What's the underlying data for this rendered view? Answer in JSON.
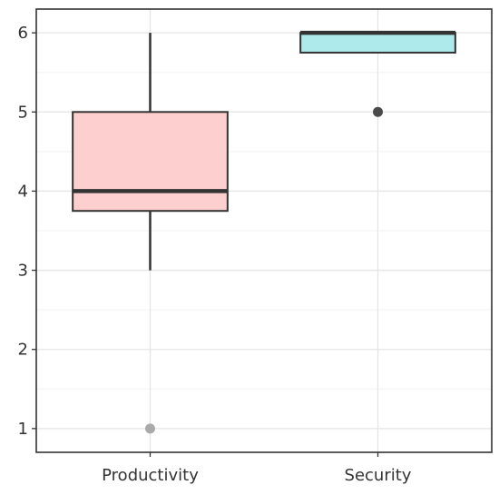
{
  "chart_data": {
    "type": "boxplot",
    "title": "",
    "xlabel": "",
    "ylabel": "",
    "categories": [
      "Productivity",
      "Security"
    ],
    "ylim": [
      0.7,
      6.3
    ],
    "yticks": [
      1,
      2,
      3,
      4,
      5,
      6
    ],
    "grid": true,
    "legend": "none",
    "boxes": [
      {
        "category": "Productivity",
        "min": 3,
        "q1": 3.75,
        "median": 4,
        "q3": 5,
        "max": 6,
        "outliers": [
          1
        ],
        "fill": "#fdd0cf",
        "outlier_color": "#aaaaaa"
      },
      {
        "category": "Security",
        "min": 5.75,
        "q1": 5.75,
        "median": 6,
        "q3": 6,
        "max": 6,
        "outliers": [
          5
        ],
        "fill": "#aeeaec",
        "outlier_color": "#4a4a4a"
      }
    ],
    "colors": {
      "axis_frame": "#333333",
      "grid_major": "#e5e5e5",
      "grid_minor": "#f2f2f2",
      "box_stroke": "#333333"
    }
  }
}
